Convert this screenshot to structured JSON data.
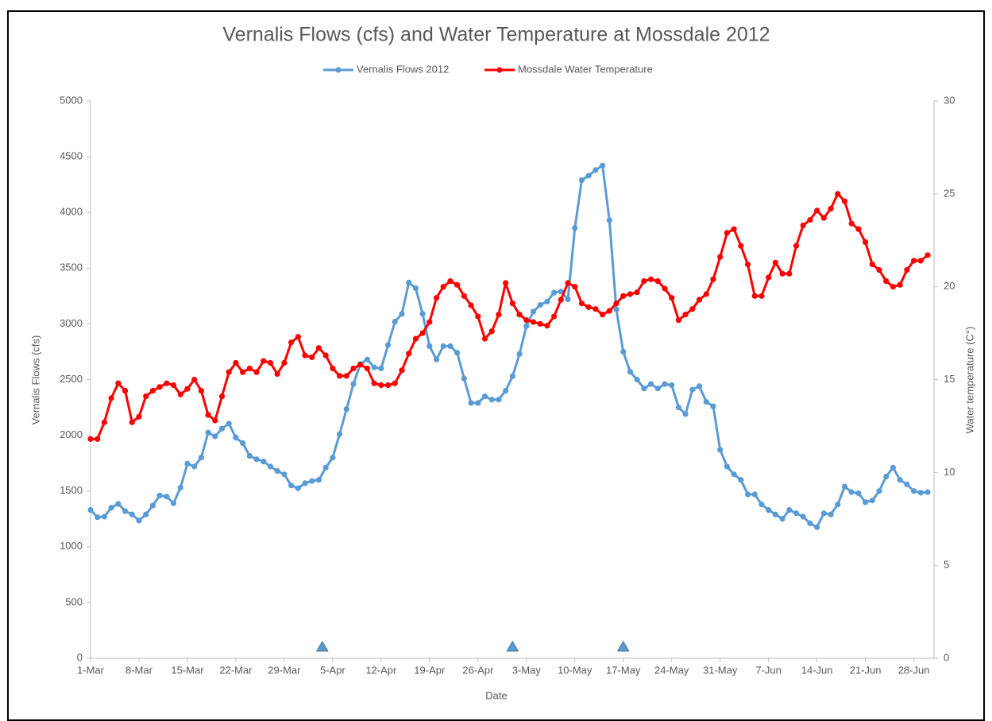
{
  "chart_data": {
    "type": "line",
    "title": "Vernalis Flows (cfs) and Water Temperature at Mossdale 2012",
    "x_label": "Date",
    "y_label": "Vernalis Flows (cfs)",
    "y2_label": "Water temperature (C°)",
    "categories": [
      "1-Mar",
      null,
      null,
      null,
      null,
      null,
      null,
      "8-Mar",
      null,
      null,
      null,
      null,
      null,
      null,
      "15-Mar",
      null,
      null,
      null,
      null,
      null,
      null,
      "22-Mar",
      null,
      null,
      null,
      null,
      null,
      null,
      "29-Mar",
      null,
      null,
      null,
      null,
      null,
      null,
      "5-Apr",
      null,
      null,
      null,
      null,
      null,
      null,
      "12-Apr",
      null,
      null,
      null,
      null,
      null,
      null,
      "19-Apr",
      null,
      null,
      null,
      null,
      null,
      null,
      "26-Apr",
      null,
      null,
      null,
      null,
      null,
      null,
      "3-May",
      null,
      null,
      null,
      null,
      null,
      null,
      "10-May",
      null,
      null,
      null,
      null,
      null,
      null,
      "17-May",
      null,
      null,
      null,
      null,
      null,
      null,
      "24-May",
      null,
      null,
      null,
      null,
      null,
      null,
      "31-May",
      null,
      null,
      null,
      null,
      null,
      null,
      "7-Jun",
      null,
      null,
      null,
      null,
      null,
      null,
      "14-Jun",
      null,
      null,
      null,
      null,
      null,
      null,
      "21-Jun",
      null,
      null,
      null,
      null,
      null,
      null,
      "28-Jun",
      null,
      null
    ],
    "series": [
      {
        "name": "Vernalis Flows 2012",
        "color": "#5b9bd5",
        "axis": "y",
        "values": [
          1330,
          1265,
          1270,
          1350,
          1385,
          1320,
          1290,
          1235,
          1290,
          1370,
          1460,
          1450,
          1390,
          1530,
          1745,
          1720,
          1800,
          2025,
          1990,
          2060,
          2105,
          1980,
          1930,
          1815,
          1785,
          1765,
          1720,
          1680,
          1650,
          1550,
          1525,
          1570,
          1590,
          1600,
          1710,
          1800,
          2010,
          2235,
          2460,
          2640,
          2680,
          2610,
          2600,
          2810,
          3020,
          3090,
          3370,
          3320,
          3090,
          2800,
          2680,
          2800,
          2800,
          2740,
          2510,
          2290,
          2290,
          2350,
          2320,
          2320,
          2400,
          2530,
          2730,
          2980,
          3110,
          3170,
          3200,
          3280,
          3290,
          3220,
          3860,
          4290,
          4330,
          4380,
          4420,
          3930,
          3130,
          2750,
          2570,
          2500,
          2420,
          2460,
          2420,
          2460,
          2450,
          2250,
          2190,
          2410,
          2440,
          2300,
          2260,
          1870,
          1720,
          1650,
          1600,
          1470,
          1470,
          1380,
          1330,
          1290,
          1250,
          1330,
          1300,
          1270,
          1210,
          1175,
          1300,
          1290,
          1380,
          1540,
          1490,
          1480,
          1400,
          1415,
          1500,
          1630,
          1710,
          1600,
          1560,
          1500,
          1485,
          1490
        ]
      },
      {
        "name": "Mossdale Water Temperature",
        "color": "#ff0000",
        "axis": "y2",
        "values": [
          11.8,
          11.8,
          12.7,
          14.0,
          14.8,
          14.4,
          12.7,
          13.0,
          14.1,
          14.4,
          14.6,
          14.8,
          14.7,
          14.2,
          14.5,
          15.0,
          14.4,
          13.1,
          12.8,
          14.1,
          15.4,
          15.9,
          15.4,
          15.6,
          15.4,
          16.0,
          15.9,
          15.3,
          15.9,
          17.0,
          17.3,
          16.3,
          16.2,
          16.7,
          16.3,
          15.6,
          15.2,
          15.2,
          15.6,
          15.8,
          15.6,
          14.8,
          14.7,
          14.7,
          14.8,
          15.5,
          16.4,
          17.2,
          17.5,
          18.1,
          19.4,
          20.0,
          20.3,
          20.1,
          19.5,
          19.0,
          18.4,
          17.2,
          17.6,
          18.5,
          20.2,
          19.1,
          18.5,
          18.2,
          18.1,
          18.0,
          17.9,
          18.4,
          19.3,
          20.2,
          20.0,
          19.1,
          18.9,
          18.8,
          18.5,
          18.7,
          19.1,
          19.5,
          19.6,
          19.7,
          20.3,
          20.4,
          20.3,
          19.9,
          19.4,
          18.2,
          18.5,
          18.8,
          19.3,
          19.6,
          20.4,
          21.6,
          22.9,
          23.1,
          22.2,
          21.2,
          19.5,
          19.5,
          20.5,
          21.3,
          20.7,
          20.7,
          22.2,
          23.3,
          23.6,
          24.1,
          23.7,
          24.2,
          25.0,
          24.6,
          23.4,
          23.1,
          22.4,
          21.2,
          20.9,
          20.3,
          20.0,
          20.1,
          20.9,
          21.4,
          21.4,
          21.7
        ]
      }
    ],
    "markers": {
      "x": [
        33.5,
        61,
        77
      ],
      "values": [
        100,
        100,
        100
      ],
      "color": "#5b9bd5"
    },
    "ylim": [
      0,
      5000
    ],
    "yticks": [
      0,
      500,
      1000,
      1500,
      2000,
      2500,
      3000,
      3500,
      4000,
      4500,
      5000
    ],
    "y2lim": [
      0,
      30
    ],
    "y2ticks": [
      0,
      5,
      10,
      15,
      20,
      25,
      30
    ],
    "legend": "top",
    "grid": false
  }
}
